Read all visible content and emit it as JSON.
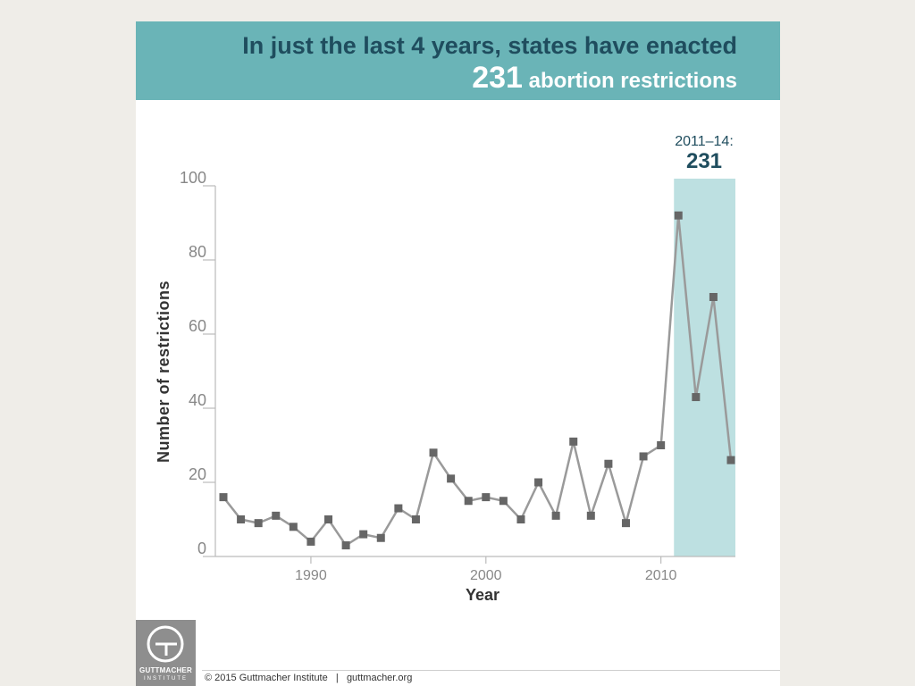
{
  "headline": {
    "line1": "In just the last 4 years, states have enacted",
    "number": "231",
    "line2_rest": "abortion restrictions"
  },
  "callout": {
    "period": "2011–14:",
    "total": "231"
  },
  "footer": {
    "copyright": "© 2015 Guttmacher Institute",
    "separator": "|",
    "site": "guttmacher.org"
  },
  "logo": {
    "name": "GUTTMACHER",
    "sub": "INSTITUTE"
  },
  "colors": {
    "banner": "#6ab4b7",
    "highlight": "#bde0e1",
    "line": "#9a9a9a",
    "marker": "#666666",
    "headline_dark": "#1f4d5e"
  },
  "chart_data": {
    "type": "line",
    "xlabel": "Year",
    "ylabel": "Number of restrictions",
    "xlim": [
      1985,
      2014
    ],
    "ylim": [
      0,
      100
    ],
    "x_ticks": [
      1990,
      2000,
      2010
    ],
    "y_ticks": [
      0,
      20,
      40,
      60,
      80,
      100
    ],
    "highlight_range": [
      2011,
      2014
    ],
    "series": [
      {
        "x": [
          1985,
          1986,
          1987,
          1988,
          1989,
          1990,
          1991,
          1992,
          1993,
          1994,
          1995,
          1996,
          1997,
          1998,
          1999,
          2000,
          2001,
          2002,
          2003,
          2004,
          2005,
          2006,
          2007,
          2008,
          2009,
          2010,
          2011,
          2012,
          2013,
          2014
        ],
        "values": [
          16,
          10,
          9,
          11,
          8,
          4,
          10,
          3,
          6,
          5,
          13,
          10,
          28,
          21,
          15,
          16,
          15,
          10,
          20,
          11,
          31,
          11,
          25,
          9,
          27,
          30,
          92,
          43,
          70,
          26
        ]
      }
    ]
  }
}
